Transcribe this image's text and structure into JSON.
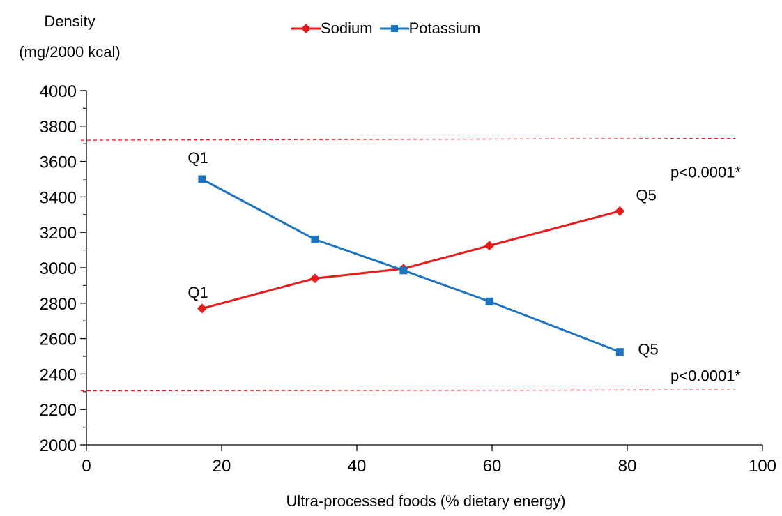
{
  "chart_data": {
    "type": "line",
    "ylabel": [
      "Density",
      "(mg/2000 kcal)"
    ],
    "xlabel": "Ultra-processed foods (% dietary energy)",
    "xlim": [
      0,
      100
    ],
    "ylim": [
      2000,
      4000
    ],
    "xticks": [
      0,
      20,
      40,
      60,
      80,
      100
    ],
    "yticks": [
      2000,
      2200,
      2400,
      2600,
      2800,
      3000,
      3200,
      3400,
      3600,
      3800,
      4000
    ],
    "legend_position": "top-center",
    "series": [
      {
        "name": "Sodium",
        "color": "#e81c1c",
        "marker": "diamond",
        "x": [
          17.1,
          33.8,
          46.9,
          59.6,
          78.9
        ],
        "y": [
          2770,
          2940,
          2995,
          3125,
          3320
        ]
      },
      {
        "name": "Potassium",
        "color": "#1f74c0",
        "marker": "square",
        "x": [
          17.1,
          33.8,
          46.9,
          59.6,
          78.9
        ],
        "y": [
          3500,
          3160,
          2985,
          2810,
          2525
        ]
      }
    ],
    "reference_lines": [
      {
        "y_start": 3720,
        "y_end": 3730,
        "x_start": 0,
        "x_end": 96,
        "color": "#e81c1c",
        "style": "dashed"
      },
      {
        "y_start": 2305,
        "y_end": 2310,
        "x_start": 0,
        "x_end": 96,
        "color": "#e81c1c",
        "style": "dashed"
      }
    ],
    "annotations": [
      {
        "text": "Q1",
        "x": 16.5,
        "y": 3590
      },
      {
        "text": "Q1",
        "x": 16.5,
        "y": 2830
      },
      {
        "text": "Q5",
        "x": 82.8,
        "y": 3380
      },
      {
        "text": "Q5",
        "x": 83.1,
        "y": 2510
      },
      {
        "text": "p<0.0001*",
        "x": 91.6,
        "y": 3510
      },
      {
        "text": "p<0.0001*",
        "x": 91.6,
        "y": 2360
      }
    ]
  }
}
